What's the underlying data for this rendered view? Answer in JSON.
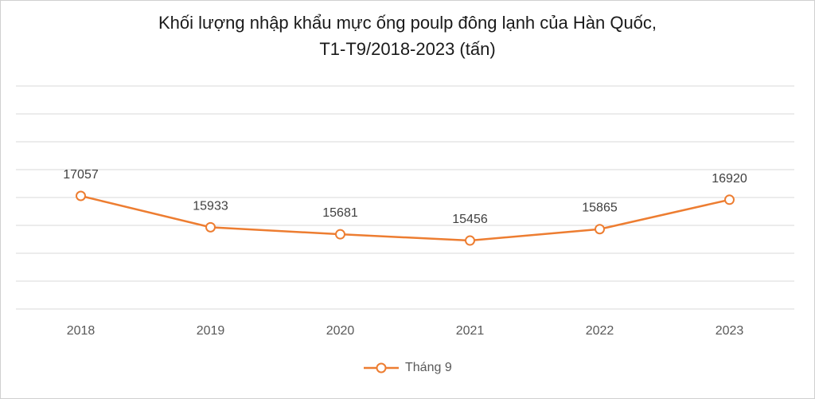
{
  "chart_data": {
    "type": "line",
    "title_line1": "Khối lượng nhập khẩu mực ống poulp đông lạnh của Hàn Quốc,",
    "title_line2": "T1-T9/2018-2023 (tấn)",
    "categories": [
      "2018",
      "2019",
      "2020",
      "2021",
      "2022",
      "2023"
    ],
    "series": [
      {
        "name": "Tháng 9",
        "values": [
          17057,
          15933,
          15681,
          15456,
          15865,
          16920
        ]
      }
    ],
    "ylim": [
      13000,
      21000
    ],
    "grid": true,
    "legend": "bottom",
    "series_color": "#ED7D31"
  }
}
